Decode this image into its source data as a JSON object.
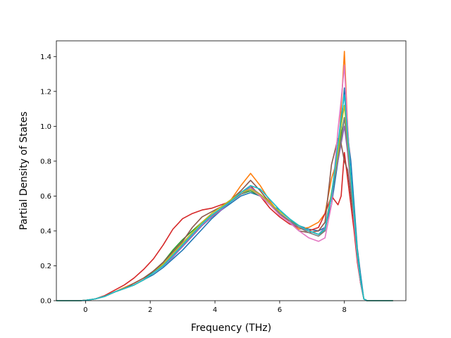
{
  "chart_data": {
    "type": "line",
    "title": "",
    "xlabel": "Frequency (THz)",
    "ylabel": "Partial Density of States",
    "xlim": [
      -0.9,
      9.9
    ],
    "ylim": [
      0.0,
      1.49
    ],
    "xticks": [
      0,
      2,
      4,
      6,
      8
    ],
    "xtick_labels": [
      "0",
      "2",
      "4",
      "6",
      "8"
    ],
    "yticks": [
      0.0,
      0.2,
      0.4,
      0.6,
      0.8,
      1.0,
      1.2,
      1.4
    ],
    "ytick_labels": [
      "0.0",
      "0.2",
      "0.4",
      "0.6",
      "0.8",
      "1.0",
      "1.2",
      "1.4"
    ],
    "grid": false,
    "legend": "none",
    "x": [
      -0.9,
      -0.2,
      0.0,
      0.3,
      0.6,
      0.9,
      1.2,
      1.5,
      1.8,
      2.1,
      2.4,
      2.7,
      3.0,
      3.3,
      3.6,
      3.9,
      4.2,
      4.5,
      4.8,
      5.1,
      5.4,
      5.7,
      6.0,
      6.3,
      6.6,
      6.9,
      7.2,
      7.4,
      7.6,
      7.8,
      7.9,
      8.0,
      8.1,
      8.2,
      8.3,
      8.4,
      8.5,
      8.6,
      8.7,
      9.0,
      9.5
    ],
    "series": [
      {
        "color": "#1f77b4",
        "values": [
          0,
          0,
          0.002,
          0.01,
          0.025,
          0.05,
          0.07,
          0.09,
          0.12,
          0.15,
          0.19,
          0.24,
          0.29,
          0.35,
          0.41,
          0.47,
          0.52,
          0.56,
          0.6,
          0.62,
          0.6,
          0.55,
          0.52,
          0.47,
          0.43,
          0.41,
          0.4,
          0.42,
          0.55,
          0.8,
          1.0,
          1.22,
          0.95,
          0.8,
          0.55,
          0.3,
          0.15,
          0.01,
          0,
          0,
          0
        ]
      },
      {
        "color": "#ff7f0e",
        "values": [
          0,
          0,
          0.002,
          0.01,
          0.025,
          0.05,
          0.075,
          0.1,
          0.13,
          0.17,
          0.21,
          0.26,
          0.31,
          0.37,
          0.43,
          0.48,
          0.53,
          0.58,
          0.66,
          0.73,
          0.66,
          0.57,
          0.5,
          0.45,
          0.41,
          0.42,
          0.45,
          0.5,
          0.7,
          0.82,
          1.1,
          1.43,
          1.0,
          0.7,
          0.45,
          0.25,
          0.1,
          0.01,
          0,
          0,
          0
        ]
      },
      {
        "color": "#2ca02c",
        "values": [
          0,
          0,
          0.002,
          0.01,
          0.025,
          0.05,
          0.07,
          0.09,
          0.12,
          0.17,
          0.22,
          0.29,
          0.35,
          0.4,
          0.45,
          0.49,
          0.53,
          0.57,
          0.61,
          0.63,
          0.6,
          0.55,
          0.5,
          0.46,
          0.43,
          0.4,
          0.38,
          0.4,
          0.6,
          0.85,
          0.95,
          1.05,
          0.9,
          0.7,
          0.5,
          0.28,
          0.12,
          0.01,
          0,
          0,
          0
        ]
      },
      {
        "color": "#d62728",
        "values": [
          0,
          0,
          0.002,
          0.01,
          0.03,
          0.06,
          0.09,
          0.13,
          0.18,
          0.24,
          0.32,
          0.41,
          0.47,
          0.5,
          0.52,
          0.53,
          0.55,
          0.57,
          0.62,
          0.66,
          0.6,
          0.53,
          0.48,
          0.44,
          0.42,
          0.4,
          0.42,
          0.5,
          0.6,
          0.55,
          0.6,
          0.85,
          0.7,
          0.55,
          0.4,
          0.22,
          0.1,
          0.01,
          0,
          0,
          0
        ]
      },
      {
        "color": "#9467bd",
        "values": [
          0,
          0,
          0.002,
          0.01,
          0.025,
          0.05,
          0.07,
          0.09,
          0.12,
          0.16,
          0.2,
          0.25,
          0.31,
          0.37,
          0.43,
          0.48,
          0.52,
          0.57,
          0.62,
          0.65,
          0.61,
          0.56,
          0.5,
          0.45,
          0.42,
          0.4,
          0.38,
          0.42,
          0.62,
          0.8,
          0.9,
          1.0,
          0.85,
          0.65,
          0.48,
          0.27,
          0.12,
          0.01,
          0,
          0,
          0
        ]
      },
      {
        "color": "#8c564b",
        "values": [
          0,
          0,
          0.002,
          0.01,
          0.025,
          0.05,
          0.07,
          0.1,
          0.13,
          0.17,
          0.22,
          0.28,
          0.34,
          0.42,
          0.48,
          0.51,
          0.54,
          0.58,
          0.63,
          0.69,
          0.63,
          0.56,
          0.5,
          0.45,
          0.4,
          0.39,
          0.4,
          0.45,
          0.78,
          0.93,
          0.9,
          0.8,
          0.75,
          0.6,
          0.45,
          0.25,
          0.1,
          0.01,
          0,
          0,
          0
        ]
      },
      {
        "color": "#e377c2",
        "values": [
          0,
          0,
          0.002,
          0.01,
          0.025,
          0.05,
          0.07,
          0.09,
          0.12,
          0.16,
          0.2,
          0.26,
          0.32,
          0.38,
          0.44,
          0.49,
          0.53,
          0.57,
          0.61,
          0.64,
          0.6,
          0.55,
          0.49,
          0.45,
          0.4,
          0.36,
          0.34,
          0.36,
          0.55,
          0.98,
          1.15,
          1.35,
          1.0,
          0.7,
          0.45,
          0.24,
          0.1,
          0.01,
          0,
          0,
          0
        ]
      },
      {
        "color": "#7f7f7f",
        "values": [
          0,
          0,
          0.002,
          0.01,
          0.025,
          0.05,
          0.07,
          0.09,
          0.12,
          0.16,
          0.21,
          0.27,
          0.33,
          0.39,
          0.45,
          0.49,
          0.53,
          0.57,
          0.61,
          0.64,
          0.61,
          0.56,
          0.5,
          0.46,
          0.42,
          0.39,
          0.37,
          0.4,
          0.6,
          0.82,
          0.92,
          1.05,
          0.88,
          0.68,
          0.48,
          0.26,
          0.11,
          0.01,
          0,
          0,
          0
        ]
      },
      {
        "color": "#bcbd22",
        "values": [
          0,
          0,
          0.002,
          0.01,
          0.025,
          0.05,
          0.07,
          0.09,
          0.12,
          0.16,
          0.21,
          0.27,
          0.33,
          0.39,
          0.45,
          0.5,
          0.54,
          0.58,
          0.62,
          0.64,
          0.61,
          0.56,
          0.51,
          0.47,
          0.43,
          0.4,
          0.38,
          0.41,
          0.62,
          0.85,
          1.0,
          1.12,
          0.92,
          0.7,
          0.5,
          0.27,
          0.12,
          0.01,
          0,
          0,
          0
        ]
      },
      {
        "color": "#17becf",
        "values": [
          0,
          0,
          0.002,
          0.01,
          0.025,
          0.05,
          0.07,
          0.09,
          0.12,
          0.16,
          0.2,
          0.26,
          0.32,
          0.38,
          0.44,
          0.49,
          0.53,
          0.57,
          0.62,
          0.66,
          0.64,
          0.58,
          0.52,
          0.47,
          0.43,
          0.4,
          0.38,
          0.41,
          0.6,
          0.9,
          1.05,
          1.18,
          0.95,
          0.72,
          0.5,
          0.27,
          0.12,
          0.01,
          0,
          0,
          0
        ]
      }
    ]
  }
}
